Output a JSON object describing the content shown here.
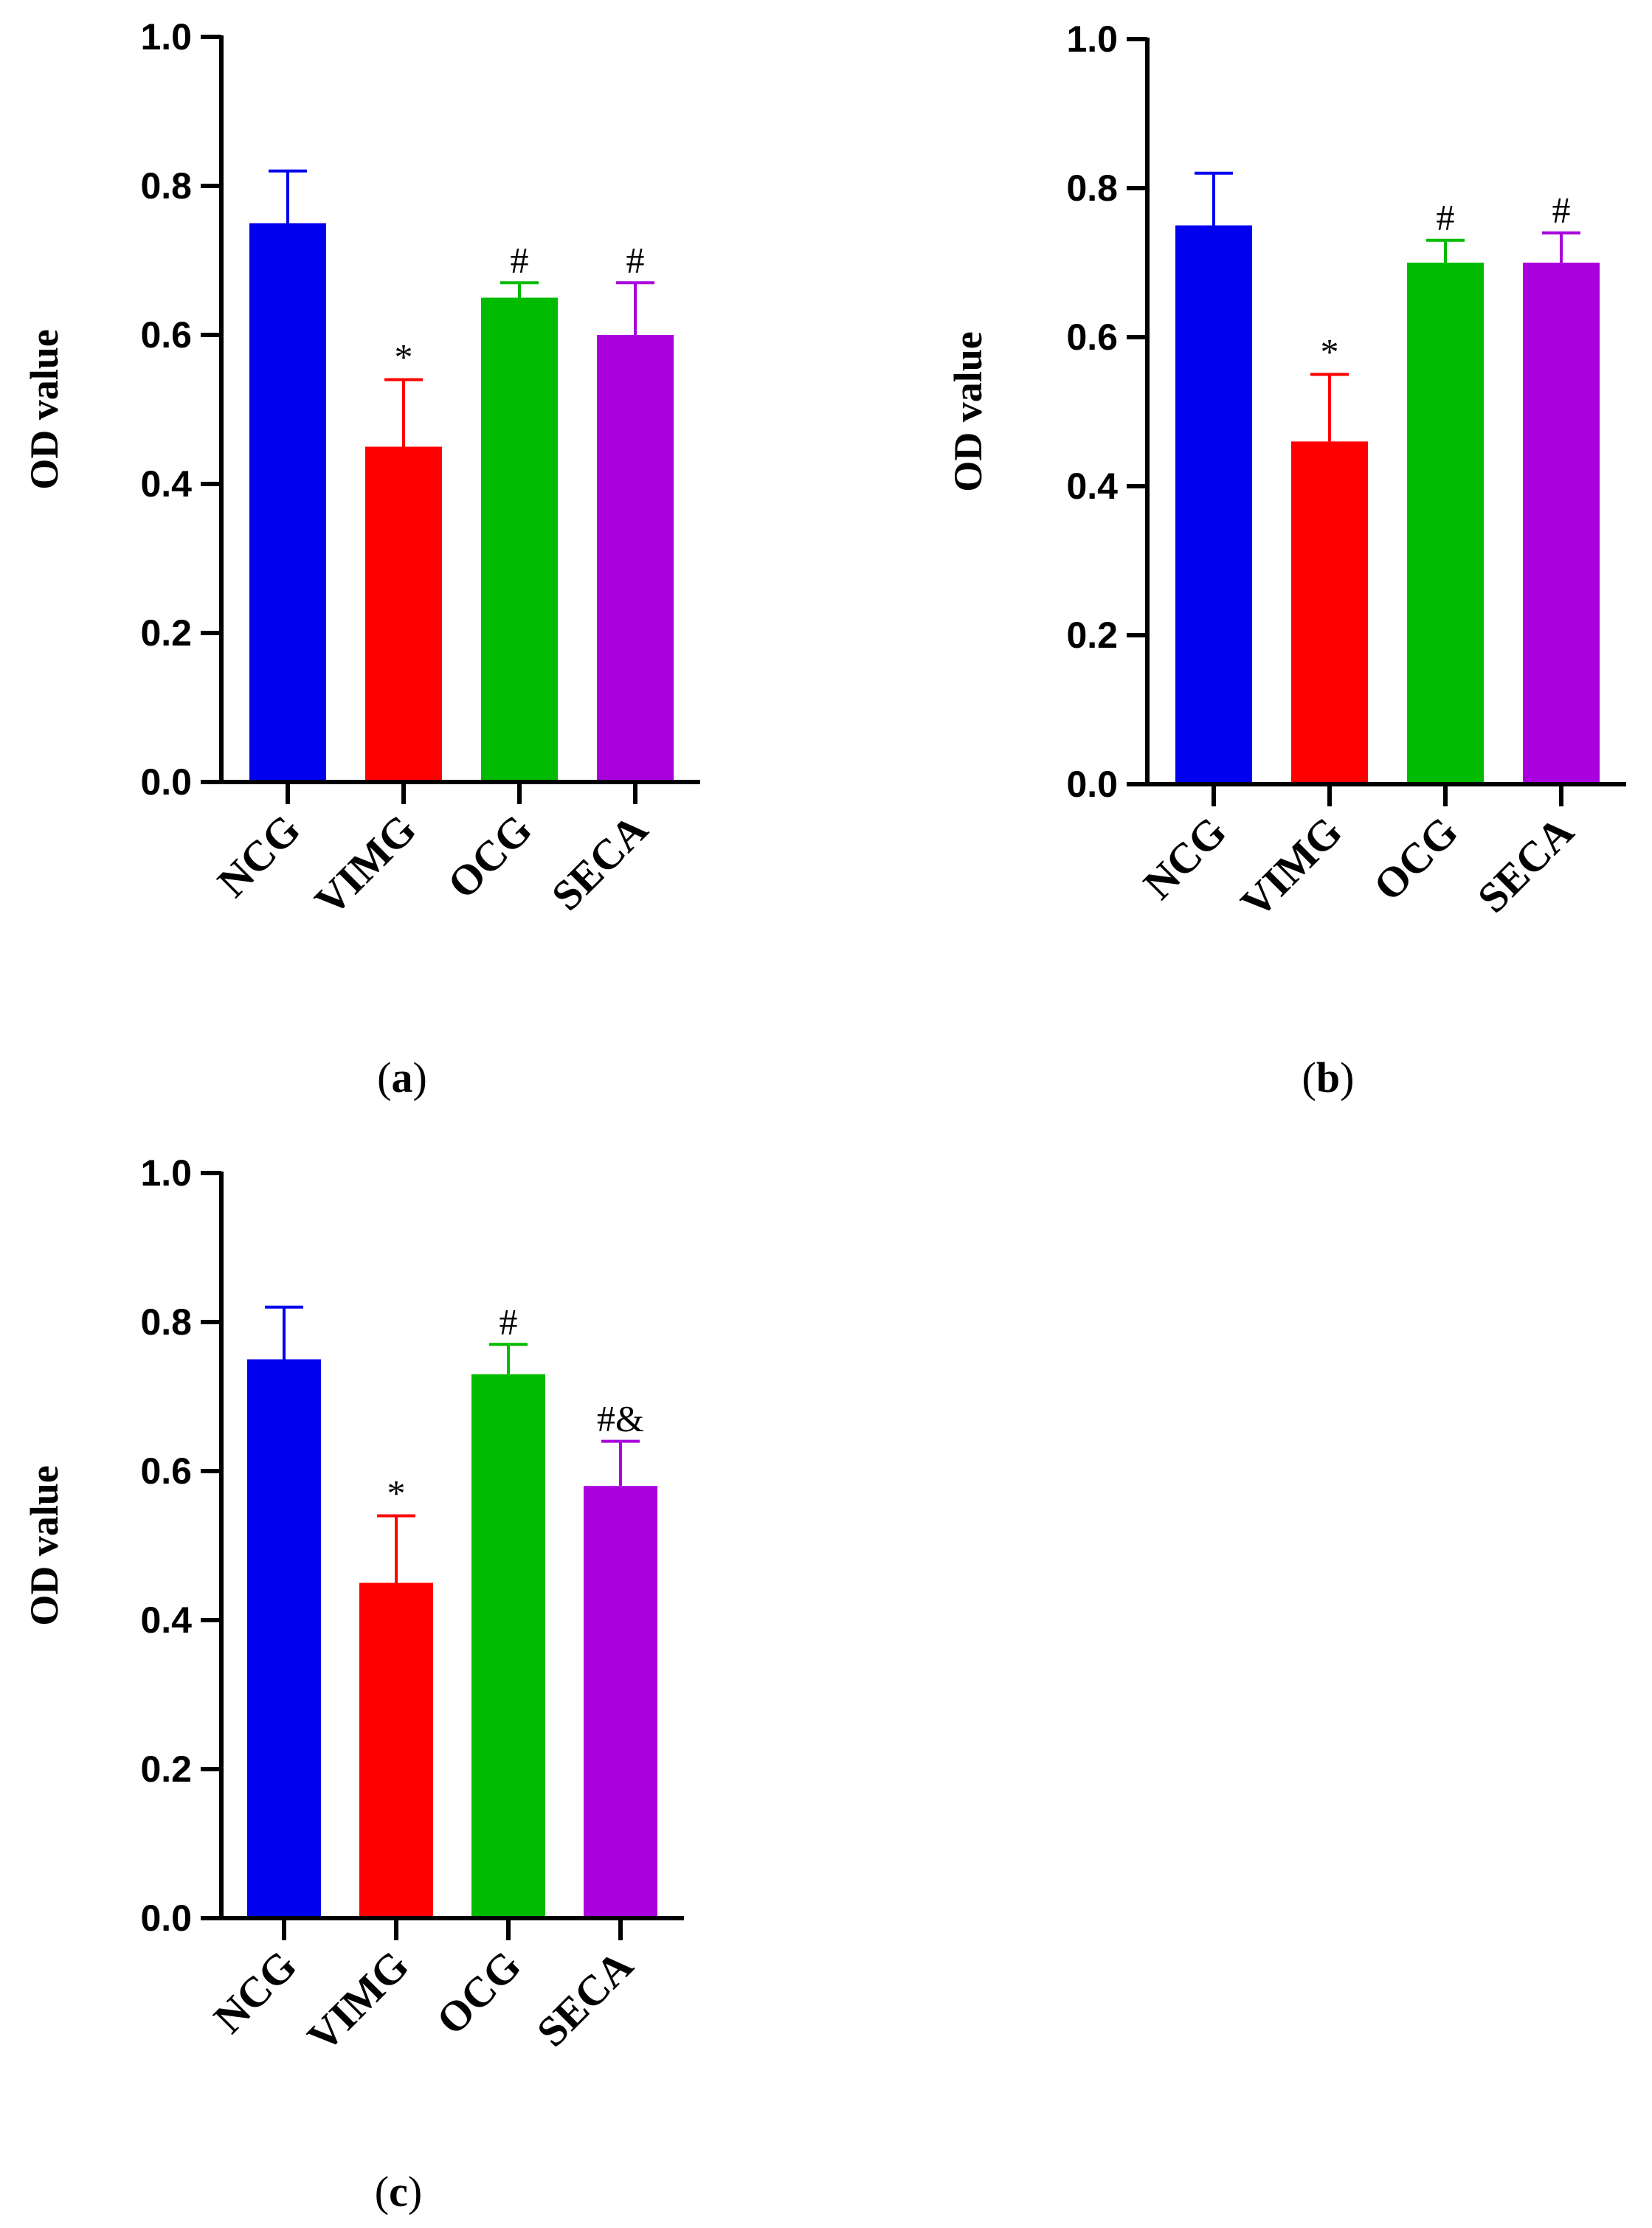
{
  "chart_data": [
    {
      "type": "bar",
      "panel_label": "a",
      "ylabel": "OD value",
      "ylim": [
        0,
        1.0
      ],
      "yticks": [
        "0.0",
        "0.2",
        "0.4",
        "0.6",
        "0.8",
        "1.0"
      ],
      "categories": [
        "NCG",
        "VIMG",
        "OCG",
        "SECA"
      ],
      "values": [
        0.75,
        0.45,
        0.65,
        0.6
      ],
      "errors": [
        0.07,
        0.09,
        0.02,
        0.07
      ],
      "annotations": [
        "",
        "*",
        "#",
        "#"
      ],
      "colors": [
        "#0000ee",
        "#ff0000",
        "#00bb00",
        "#aa00dd"
      ]
    },
    {
      "type": "bar",
      "panel_label": "b",
      "ylabel": "OD value",
      "ylim": [
        0,
        1.0
      ],
      "yticks": [
        "0.0",
        "0.2",
        "0.4",
        "0.6",
        "0.8",
        "1.0"
      ],
      "categories": [
        "NCG",
        "VIMG",
        "OCG",
        "SECA"
      ],
      "values": [
        0.75,
        0.46,
        0.7,
        0.7
      ],
      "errors": [
        0.07,
        0.09,
        0.03,
        0.04
      ],
      "annotations": [
        "",
        "*",
        "#",
        "#"
      ],
      "colors": [
        "#0000ee",
        "#ff0000",
        "#00bb00",
        "#aa00dd"
      ]
    },
    {
      "type": "bar",
      "panel_label": "c",
      "ylabel": "OD value",
      "ylim": [
        0,
        1.0
      ],
      "yticks": [
        "0.0",
        "0.2",
        "0.4",
        "0.6",
        "0.8",
        "1.0"
      ],
      "categories": [
        "NCG",
        "VIMG",
        "OCG",
        "SECA"
      ],
      "values": [
        0.75,
        0.45,
        0.73,
        0.58
      ],
      "errors": [
        0.07,
        0.09,
        0.04,
        0.06
      ],
      "annotations": [
        "",
        "*",
        "#",
        "#&"
      ],
      "colors": [
        "#0000ee",
        "#ff0000",
        "#00bb00",
        "#aa00dd"
      ]
    }
  ]
}
